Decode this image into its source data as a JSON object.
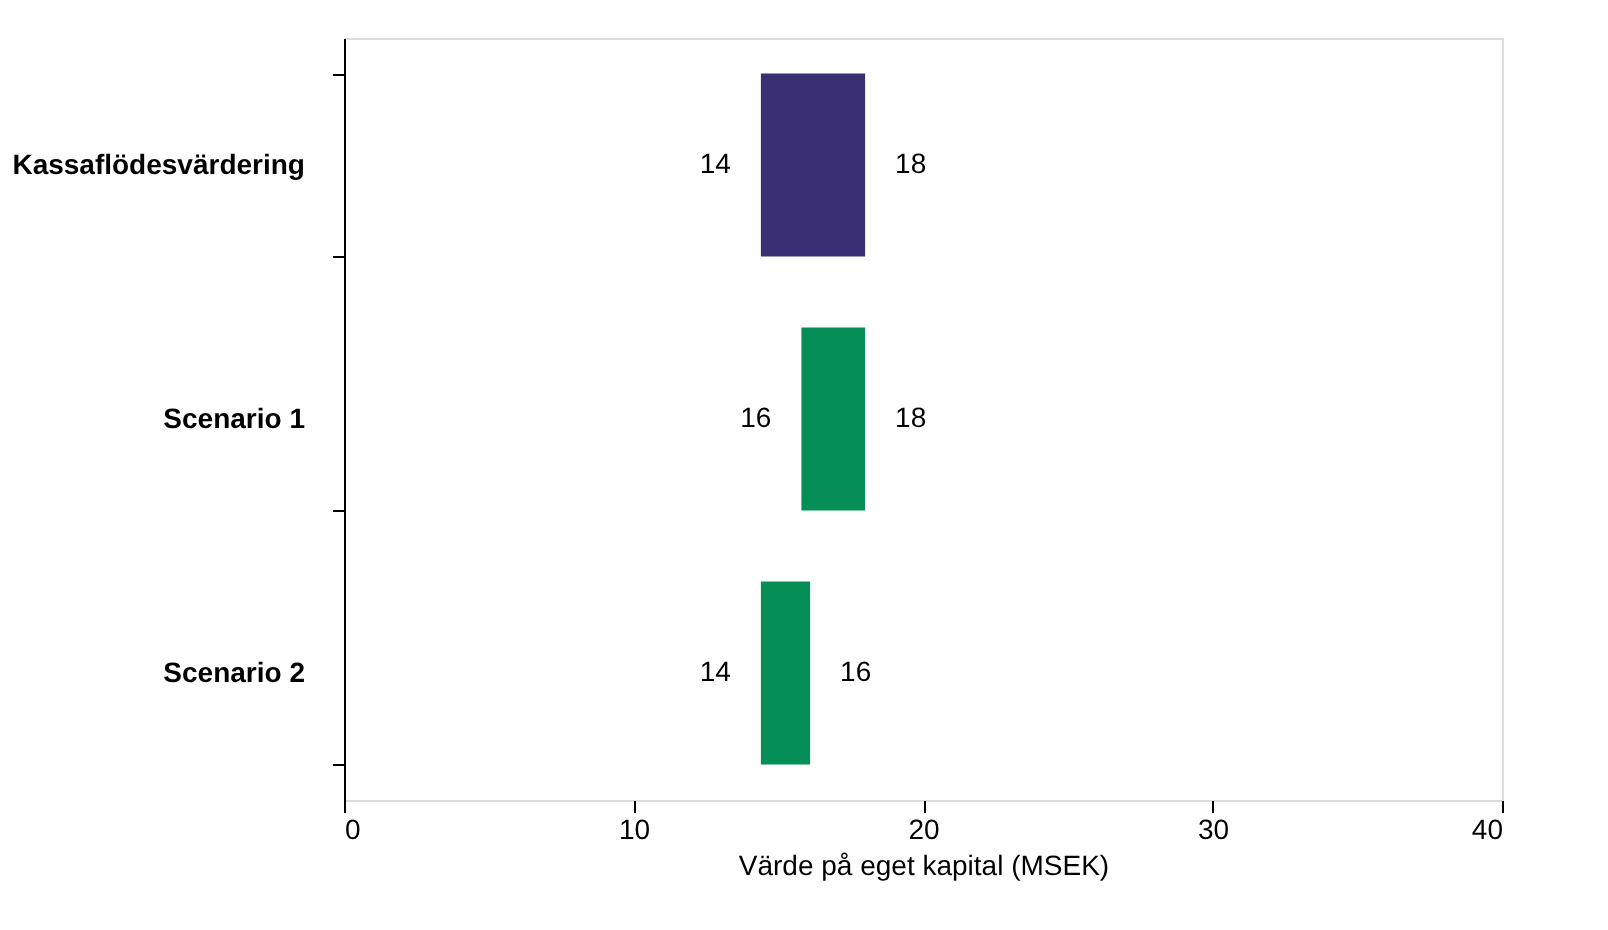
{
  "chart_data": {
    "type": "bar",
    "orientation": "horizontal",
    "categories": [
      "Kassaflödesvärdering",
      "Scenario 1",
      "Scenario 2"
    ],
    "base": [
      14.4,
      15.8,
      14.4
    ],
    "values": [
      3.6,
      2.2,
      1.7
    ],
    "colors": [
      "#3b2f73",
      "#058f56",
      "#058f56"
    ],
    "xlabel": "Värde på eget kapital (MSEK)",
    "xlim": [
      0,
      40
    ],
    "xticks": [
      0,
      10,
      20,
      30,
      40
    ],
    "grid": false,
    "annotations": [
      {
        "text": "14",
        "x": 14.4,
        "y": "Kassaflödesvärdering"
      },
      {
        "text": "18",
        "x": 18,
        "y": "Kassaflödesvärdering"
      },
      {
        "text": "16",
        "x": 15.8,
        "y": "Scenario 1"
      },
      {
        "text": "18",
        "x": 18,
        "y": "Scenario 1"
      },
      {
        "text": "14",
        "x": 14.4,
        "y": "Scenario 2"
      },
      {
        "text": "16",
        "x": 16.1,
        "y": "Scenario 2"
      }
    ]
  }
}
